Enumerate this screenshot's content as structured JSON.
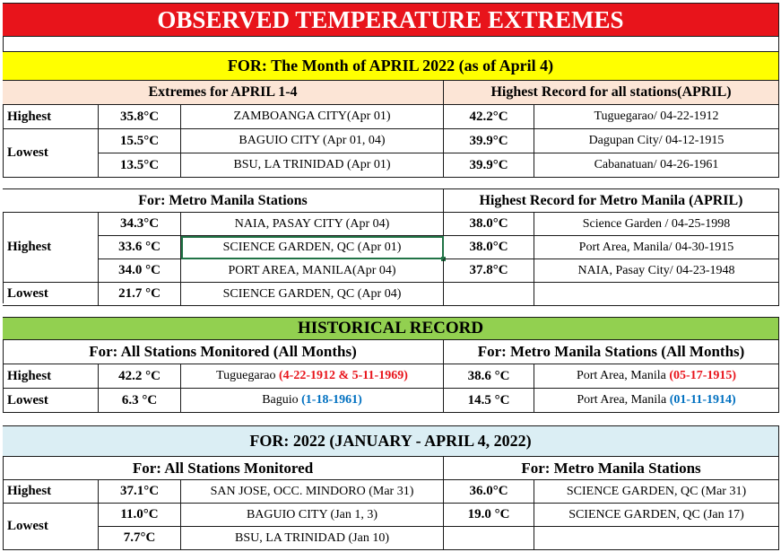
{
  "title": "OBSERVED TEMPERATURE EXTREMES",
  "period_header": "FOR:   The Month of APRIL 2022 (as of  April 4)",
  "section1": {
    "left_header": "Extremes for APRIL 1-4",
    "right_header": "Highest Record for all stations(APRIL)",
    "highest_label": "Highest",
    "lowest_label": "Lowest",
    "rows": [
      {
        "val": "35.8°C",
        "station": "ZAMBOANGA CITY(Apr 01)",
        "rec_val": "42.2°C",
        "rec_station": "Tuguegarao/ 04-22-1912"
      },
      {
        "val": "15.5°C",
        "station": "BAGUIO CITY  (Apr 01, 04)",
        "rec_val": "39.9°C",
        "rec_station": "Dagupan City/ 04-12-1915"
      },
      {
        "val": "13.5°C",
        "station": "BSU, LA TRINIDAD (Apr 01)",
        "rec_val": "39.9°C",
        "rec_station": "Cabanatuan/ 04-26-1961"
      }
    ]
  },
  "section2": {
    "left_header": "For: Metro Manila Stations",
    "right_header": "Highest Record for Metro Manila (APRIL)",
    "highest_label": "Highest",
    "lowest_label": "Lowest",
    "rows": [
      {
        "val": "34.3°C",
        "station": "NAIA, PASAY CITY (Apr 04)",
        "rec_val": "38.0°C",
        "rec_station": "Science Garden /  04-25-1998"
      },
      {
        "val": "33.6 °C",
        "station": "SCIENCE GARDEN, QC (Apr 01)",
        "rec_val": "38.0°C",
        "rec_station": "Port Area, Manila/ 04-30-1915"
      },
      {
        "val": "34.0 °C",
        "station": "PORT AREA, MANILA(Apr 04)",
        "rec_val": "37.8°C",
        "rec_station": "NAIA, Pasay City/  04-23-1948"
      },
      {
        "val": "21.7 °C",
        "station": "SCIENCE GARDEN, QC (Apr 04)",
        "rec_val": "",
        "rec_station": ""
      }
    ]
  },
  "historical": {
    "header": "HISTORICAL RECORD",
    "left_header": "For:  All Stations Monitored (All Months)",
    "right_header": "For: Metro Manila Stations (All Months)",
    "rows": [
      {
        "label": "Highest",
        "val": "42.2 °C",
        "station": "Tuguegarao ",
        "station_date": "(4-22-1912 & 5-11-1969)",
        "mm_val": "38.6 °C",
        "mm_station": "Port Area, Manila ",
        "mm_date": "(05-17-1915)"
      },
      {
        "label": "Lowest",
        "val": "6.3 °C",
        "station": "Baguio ",
        "station_date": "(1-18-1961)",
        "mm_val": "14.5 °C",
        "mm_station": "Port Area, Manila ",
        "mm_date": "(01-11-1914)"
      }
    ]
  },
  "year": {
    "header": "FOR:    2022 (JANUARY - APRIL 4, 2022)",
    "left_header": "For:  All Stations Monitored",
    "right_header": "For: Metro Manila Stations",
    "highest_label": "Highest",
    "lowest_label": "Lowest",
    "rows": [
      {
        "val": "37.1°C",
        "station": "SAN JOSE, OCC. MINDORO (Mar 31)",
        "mm_val": "36.0°C",
        "mm_station": "SCIENCE GARDEN, QC (Mar 31)"
      },
      {
        "val": "11.0°C",
        "station": "BAGUIO CITY  (Jan 1, 3)",
        "mm_val": "19.0 °C",
        "mm_station": "SCIENCE GARDEN, QC (Jan 17)"
      },
      {
        "val": "7.7°C",
        "station": "BSU, LA TRINIDAD (Jan 10)",
        "mm_val": "",
        "mm_station": ""
      }
    ]
  },
  "colors": {
    "title_bg": "#e8141b",
    "period_bg": "#ffff00",
    "subheader_bg": "#fce5d6",
    "historical_bg": "#92d050",
    "year_bg": "#dbeef4",
    "record_red": "#e8141b",
    "record_blue": "#0070c0"
  }
}
